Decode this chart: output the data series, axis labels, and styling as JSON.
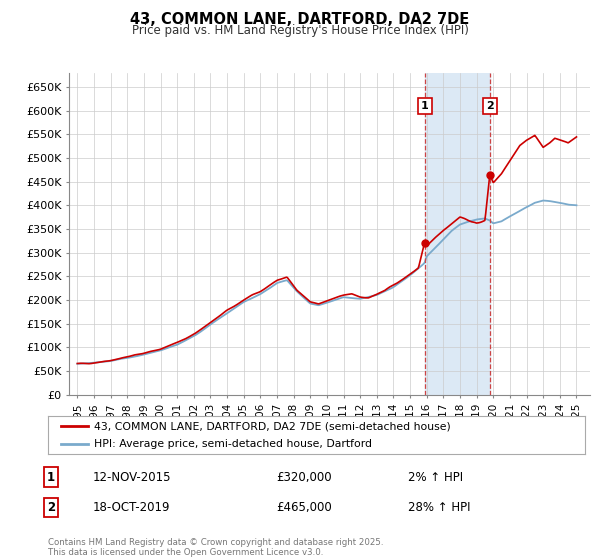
{
  "title": "43, COMMON LANE, DARTFORD, DA2 7DE",
  "subtitle": "Price paid vs. HM Land Registry's House Price Index (HPI)",
  "red_line_label": "43, COMMON LANE, DARTFORD, DA2 7DE (semi-detached house)",
  "blue_line_label": "HPI: Average price, semi-detached house, Dartford",
  "marker1_date": 2015.87,
  "marker1_value": 320000,
  "marker1_label": "1",
  "marker1_info": "12-NOV-2015",
  "marker1_price": "£320,000",
  "marker1_hpi": "2% ↑ HPI",
  "marker2_date": 2019.79,
  "marker2_value": 465000,
  "marker2_label": "2",
  "marker2_info": "18-OCT-2019",
  "marker2_price": "£465,000",
  "marker2_hpi": "28% ↑ HPI",
  "shade_x1": 2015.87,
  "shade_x2": 2019.79,
  "ylim": [
    0,
    680000
  ],
  "xlim_left": 1994.5,
  "xlim_right": 2025.8,
  "ytick_vals": [
    0,
    50000,
    100000,
    150000,
    200000,
    250000,
    300000,
    350000,
    400000,
    450000,
    500000,
    550000,
    600000,
    650000
  ],
  "ytick_labels": [
    "£0",
    "£50K",
    "£100K",
    "£150K",
    "£200K",
    "£250K",
    "£300K",
    "£350K",
    "£400K",
    "£450K",
    "£500K",
    "£550K",
    "£600K",
    "£650K"
  ],
  "xtick_vals": [
    1995,
    1996,
    1997,
    1998,
    1999,
    2000,
    2001,
    2002,
    2003,
    2004,
    2005,
    2006,
    2007,
    2008,
    2009,
    2010,
    2011,
    2012,
    2013,
    2014,
    2015,
    2016,
    2017,
    2018,
    2019,
    2020,
    2021,
    2022,
    2023,
    2024,
    2025
  ],
  "red_color": "#cc0000",
  "blue_color": "#7aaacc",
  "shade_color": "#dce9f5",
  "vline_color": "#cc4444",
  "grid_color": "#cccccc",
  "bg_color": "#ffffff",
  "copyright_text": "Contains HM Land Registry data © Crown copyright and database right 2025.\nThis data is licensed under the Open Government Licence v3.0.",
  "red_key_years": [
    1995,
    1996,
    1997,
    1998,
    1999,
    2000,
    2001,
    2002,
    2003,
    2004,
    2005,
    2006,
    2007,
    2007.6,
    2008.2,
    2009.0,
    2009.5,
    2010,
    2010.5,
    2011,
    2011.5,
    2012,
    2012.5,
    2013,
    2013.5,
    2014,
    2014.5,
    2015,
    2015.5,
    2015.87,
    2016,
    2016.5,
    2017,
    2017.5,
    2018,
    2018.3,
    2018.7,
    2019,
    2019.5,
    2019.79,
    2020,
    2020.5,
    2021,
    2021.3,
    2021.6,
    2022,
    2022.5,
    2023,
    2023.3,
    2023.7,
    2024,
    2024.5,
    2025
  ],
  "red_key_vals": [
    65000,
    68000,
    73000,
    80000,
    88000,
    97000,
    110000,
    128000,
    152000,
    178000,
    200000,
    218000,
    242000,
    248000,
    222000,
    196000,
    192000,
    198000,
    204000,
    210000,
    213000,
    207000,
    205000,
    212000,
    220000,
    232000,
    242000,
    255000,
    268000,
    320000,
    312000,
    332000,
    348000,
    362000,
    376000,
    372000,
    365000,
    362000,
    368000,
    465000,
    448000,
    468000,
    495000,
    512000,
    528000,
    538000,
    548000,
    522000,
    530000,
    542000,
    538000,
    532000,
    545000
  ],
  "blue_key_years": [
    1995,
    1996,
    1997,
    1998,
    1999,
    2000,
    2001,
    2002,
    2003,
    2004,
    2005,
    2006,
    2007,
    2007.6,
    2008.2,
    2009,
    2009.5,
    2010,
    2011,
    2012,
    2013,
    2014,
    2015,
    2015.5,
    2015.87,
    2016,
    2016.5,
    2017,
    2017.5,
    2018,
    2018.5,
    2019,
    2019.5,
    2019.79,
    2020,
    2020.5,
    2021,
    2021.5,
    2022,
    2022.5,
    2023,
    2023.5,
    2024,
    2024.5,
    2025
  ],
  "blue_key_vals": [
    65000,
    67000,
    72000,
    78000,
    85000,
    94000,
    106000,
    124000,
    148000,
    172000,
    196000,
    212000,
    236000,
    242000,
    218000,
    192000,
    188000,
    194000,
    206000,
    203000,
    210000,
    228000,
    252000,
    266000,
    278000,
    292000,
    310000,
    328000,
    346000,
    360000,
    366000,
    370000,
    372000,
    368000,
    362000,
    366000,
    376000,
    386000,
    396000,
    406000,
    410000,
    408000,
    406000,
    402000,
    400000
  ]
}
